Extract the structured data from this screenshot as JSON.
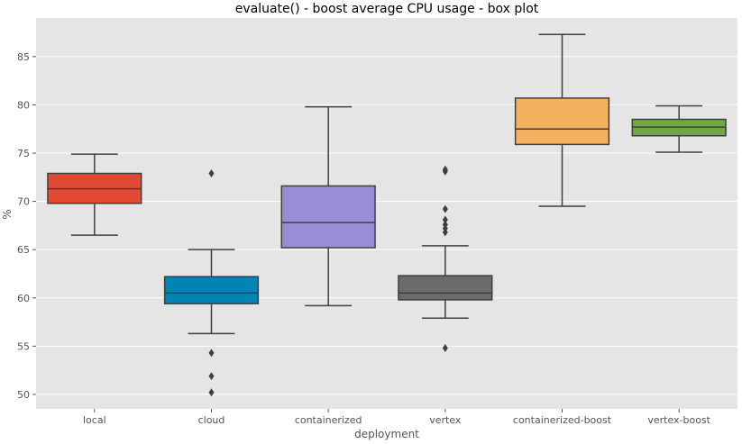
{
  "chart_data": {
    "type": "box",
    "title": "evaluate() - boost average CPU usage - box plot",
    "xlabel": "deployment",
    "ylabel": "%",
    "ylim": [
      48.5,
      89
    ],
    "yticks": [
      50,
      55,
      60,
      65,
      70,
      75,
      80,
      85
    ],
    "grid": true,
    "categories": [
      "local",
      "cloud",
      "containerized",
      "vertex",
      "containerized-boost",
      "vertex-boost"
    ],
    "colors": [
      "#E24A33",
      "#0084B4",
      "#988ED5",
      "#6B6B6B",
      "#F5B15F",
      "#6FA83E"
    ],
    "boxes": [
      {
        "category": "local",
        "whislo": 66.5,
        "q1": 69.8,
        "med": 71.3,
        "q3": 72.9,
        "whishi": 74.9,
        "fliers": []
      },
      {
        "category": "cloud",
        "whislo": 56.3,
        "q1": 59.4,
        "med": 60.5,
        "q3": 62.2,
        "whishi": 65.0,
        "fliers": [
          72.9,
          54.3,
          51.9,
          50.2
        ]
      },
      {
        "category": "containerized",
        "whislo": 59.2,
        "q1": 65.2,
        "med": 67.8,
        "q3": 71.6,
        "whishi": 79.8,
        "fliers": []
      },
      {
        "category": "vertex",
        "whislo": 57.9,
        "q1": 59.8,
        "med": 60.5,
        "q3": 62.3,
        "whishi": 65.4,
        "fliers": [
          73.3,
          73.1,
          69.2,
          68.1,
          67.6,
          67.2,
          66.8,
          54.8
        ]
      },
      {
        "category": "containerized-boost",
        "whislo": 69.5,
        "q1": 75.9,
        "med": 77.5,
        "q3": 80.7,
        "whishi": 87.3,
        "fliers": []
      },
      {
        "category": "vertex-boost",
        "whislo": 75.1,
        "q1": 76.8,
        "med": 77.7,
        "q3": 78.5,
        "whishi": 79.9,
        "fliers": []
      }
    ]
  }
}
